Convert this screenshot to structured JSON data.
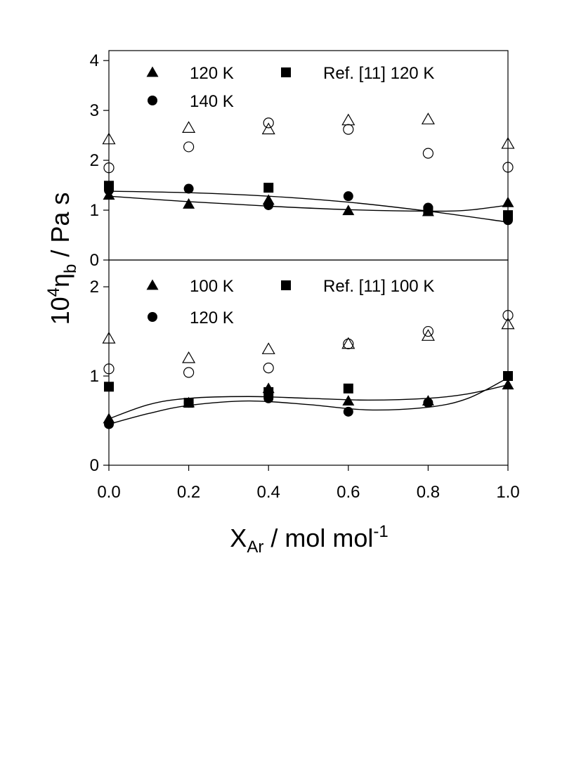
{
  "figure": {
    "ylabel": {
      "base": "10",
      "exp": "4",
      "eta": "η",
      "sub": "b",
      "rest": " / Pa s"
    },
    "xlabel": {
      "base": "X",
      "sub": "Ar",
      "rest": " / mol mol",
      "exp": "-1"
    }
  },
  "chart_data": [
    {
      "type": "scatter",
      "panel": "top",
      "xlim": [
        0,
        1
      ],
      "ylim": [
        0,
        4.2
      ],
      "yticks": [
        0,
        1,
        2,
        3,
        4
      ],
      "xticks": [],
      "grid": false,
      "legend": [
        {
          "marker": "filled-triangle",
          "label": "120 K"
        },
        {
          "marker": "filled-square",
          "label": "Ref. [11] 120 K"
        },
        {
          "marker": "filled-circle",
          "label": "140 K"
        }
      ],
      "x": [
        0.0,
        0.2,
        0.4,
        0.6,
        0.8,
        1.0
      ],
      "series": [
        {
          "marker": "filled-triangle",
          "values": [
            1.3,
            1.12,
            1.2,
            0.99,
            0.97,
            1.15
          ]
        },
        {
          "marker": "filled-square",
          "values": [
            1.49,
            null,
            1.45,
            null,
            0.98,
            0.9
          ]
        },
        {
          "marker": "filled-circle",
          "values": [
            1.4,
            1.43,
            1.1,
            1.28,
            1.05,
            0.8
          ]
        },
        {
          "marker": "open-triangle",
          "values": [
            2.42,
            2.65,
            2.62,
            2.8,
            2.82,
            2.33
          ]
        },
        {
          "marker": "open-circle",
          "values": [
            1.85,
            2.27,
            2.75,
            2.62,
            2.14,
            1.86
          ]
        }
      ],
      "fit_curves": [
        {
          "x": [
            0.0,
            0.2,
            0.4,
            0.6,
            0.8,
            0.9,
            1.0
          ],
          "y": [
            1.28,
            1.17,
            1.08,
            1.01,
            0.98,
            1.0,
            1.1
          ]
        },
        {
          "x": [
            0.0,
            0.2,
            0.4,
            0.6,
            0.8,
            1.0
          ],
          "y": [
            1.38,
            1.35,
            1.28,
            1.16,
            0.98,
            0.76
          ]
        }
      ]
    },
    {
      "type": "scatter",
      "panel": "bottom",
      "xlim": [
        0,
        1
      ],
      "ylim": [
        0,
        2.3
      ],
      "yticks": [
        0,
        1,
        2
      ],
      "xticks": [
        0.0,
        0.2,
        0.4,
        0.6,
        0.8,
        1.0
      ],
      "xticklabels": [
        "0.0",
        "0.2",
        "0.4",
        "0.6",
        "0.8",
        "1.0"
      ],
      "grid": false,
      "legend": [
        {
          "marker": "filled-triangle",
          "label": "100 K"
        },
        {
          "marker": "filled-square",
          "label": "Ref. [11] 100 K"
        },
        {
          "marker": "filled-circle",
          "label": "120 K"
        }
      ],
      "x": [
        0.0,
        0.2,
        0.4,
        0.6,
        0.8,
        1.0
      ],
      "series": [
        {
          "marker": "filled-triangle",
          "values": [
            0.52,
            0.7,
            0.86,
            0.72,
            0.72,
            0.9
          ]
        },
        {
          "marker": "filled-square",
          "values": [
            0.88,
            0.7,
            0.82,
            0.86,
            null,
            1.0
          ]
        },
        {
          "marker": "filled-circle",
          "values": [
            0.46,
            0.7,
            0.75,
            0.6,
            0.7,
            null
          ]
        },
        {
          "marker": "open-triangle",
          "values": [
            1.42,
            1.2,
            1.3,
            1.36,
            1.45,
            1.58
          ]
        },
        {
          "marker": "open-circle",
          "values": [
            1.08,
            1.04,
            1.09,
            1.36,
            1.5,
            1.68
          ]
        }
      ],
      "fit_curves": [
        {
          "x": [
            0.0,
            0.1,
            0.2,
            0.35,
            0.5,
            0.65,
            0.8,
            0.9,
            1.0
          ],
          "y": [
            0.52,
            0.68,
            0.75,
            0.77,
            0.75,
            0.73,
            0.75,
            0.8,
            0.9
          ]
        },
        {
          "x": [
            0.0,
            0.1,
            0.2,
            0.35,
            0.5,
            0.65,
            0.8,
            0.9,
            1.0
          ],
          "y": [
            0.46,
            0.58,
            0.67,
            0.72,
            0.68,
            0.62,
            0.65,
            0.75,
            0.98
          ]
        }
      ]
    }
  ]
}
